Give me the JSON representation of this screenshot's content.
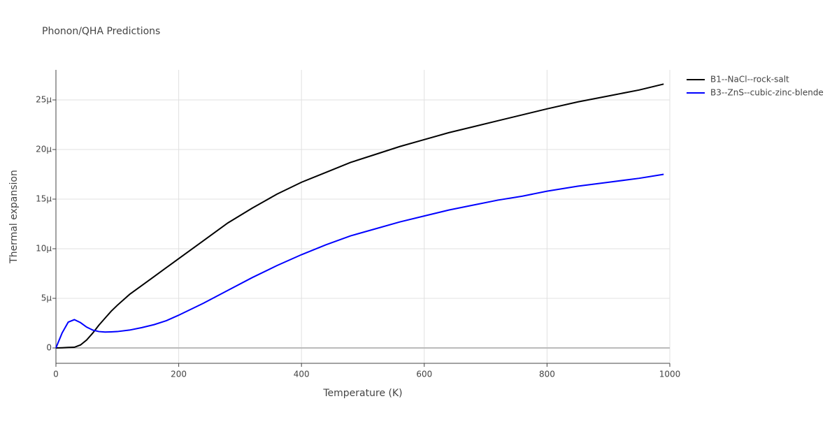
{
  "chart_data": {
    "type": "line",
    "title": "Phonon/QHA Predictions",
    "x_label": "Temperature (K)",
    "y_label": "Thermal expansion",
    "x": [
      0,
      10,
      20,
      30,
      40,
      50,
      60,
      70,
      80,
      90,
      100,
      120,
      140,
      160,
      180,
      200,
      240,
      280,
      320,
      360,
      400,
      440,
      480,
      520,
      560,
      600,
      640,
      680,
      720,
      760,
      800,
      850,
      900,
      950,
      990
    ],
    "series": [
      {
        "name": "B1--NaCl--rock-salt",
        "color": "#000000",
        "values": [
          0,
          2e-08,
          5e-08,
          7e-08,
          3e-07,
          8e-07,
          1.5e-06,
          2.3e-06,
          3e-06,
          3.7e-06,
          4.3e-06,
          5.4e-06,
          6.3e-06,
          7.2e-06,
          8.1e-06,
          9e-06,
          1.08e-05,
          1.26e-05,
          1.41e-05,
          1.55e-05,
          1.67e-05,
          1.77e-05,
          1.87e-05,
          1.95e-05,
          2.03e-05,
          2.1e-05,
          2.17e-05,
          2.23e-05,
          2.29e-05,
          2.35e-05,
          2.41e-05,
          2.48e-05,
          2.54e-05,
          2.6e-05,
          2.66e-05
        ]
      },
      {
        "name": "B3--ZnS--cubic-zinc-blende",
        "color": "#0000ff",
        "values": [
          0,
          1.5e-06,
          2.6e-06,
          2.85e-06,
          2.55e-06,
          2.1e-06,
          1.8e-06,
          1.65e-06,
          1.6e-06,
          1.62e-06,
          1.65e-06,
          1.8e-06,
          2.05e-06,
          2.35e-06,
          2.75e-06,
          3.3e-06,
          4.5e-06,
          5.8e-06,
          7.1e-06,
          8.3e-06,
          9.4e-06,
          1.04e-05,
          1.13e-05,
          1.2e-05,
          1.27e-05,
          1.33e-05,
          1.39e-05,
          1.44e-05,
          1.49e-05,
          1.53e-05,
          1.58e-05,
          1.63e-05,
          1.67e-05,
          1.71e-05,
          1.75e-05
        ]
      }
    ],
    "xlim": [
      0,
      1000
    ],
    "xticks": [
      0,
      200,
      400,
      600,
      800,
      1000
    ],
    "ylim": [
      -1.55e-06,
      2.803e-05
    ],
    "yticks": [
      0,
      {
        "value": 5e-06,
        "label": "5μ"
      },
      {
        "value": 1e-05,
        "label": "10μ"
      },
      {
        "value": 1.5e-05,
        "label": "15μ"
      },
      {
        "value": 2e-05,
        "label": "20μ"
      },
      {
        "value": 2.5e-05,
        "label": "25μ"
      }
    ],
    "grid": true,
    "legend": "right"
  }
}
